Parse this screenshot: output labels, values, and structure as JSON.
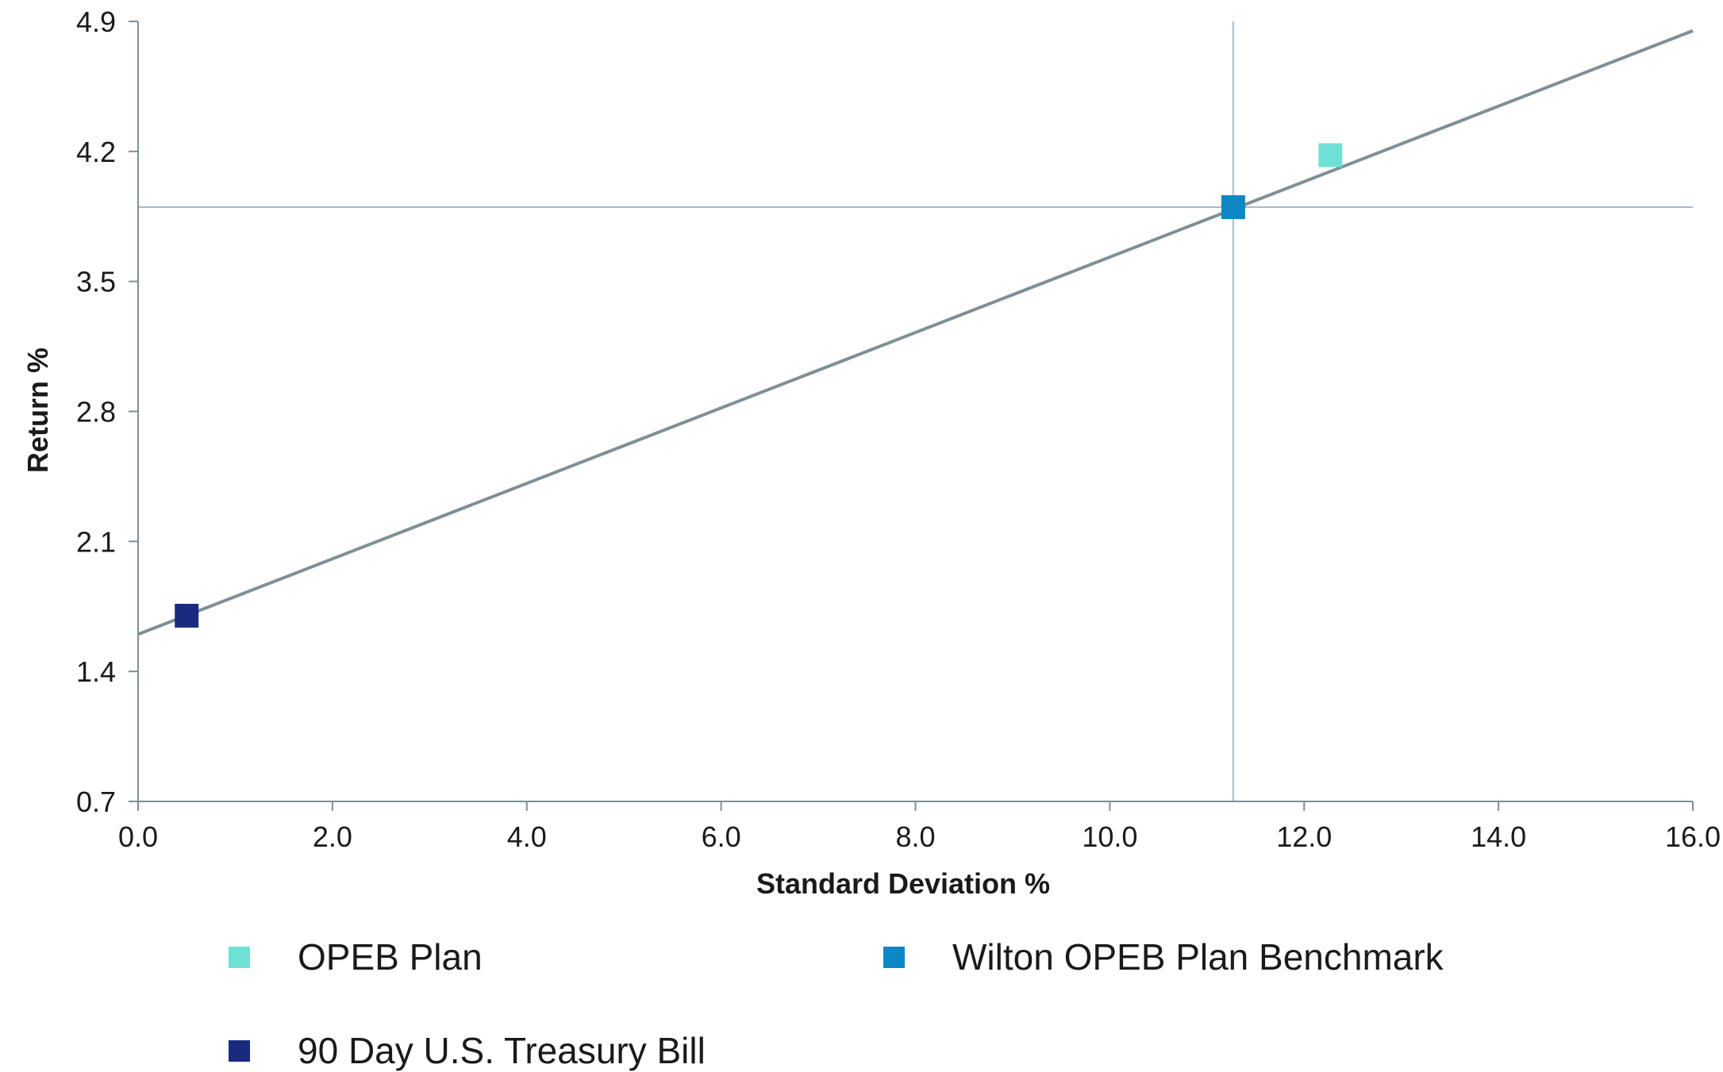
{
  "chart_data": {
    "type": "scatter",
    "xlabel": "Standard Deviation %",
    "ylabel": "Return %",
    "xlim": [
      0.0,
      16.0
    ],
    "ylim": [
      0.7,
      4.9
    ],
    "x_ticks": [
      "0.0",
      "2.0",
      "4.0",
      "6.0",
      "8.0",
      "10.0",
      "12.0",
      "14.0",
      "16.0"
    ],
    "y_ticks": [
      "0.7",
      "1.4",
      "2.1",
      "2.8",
      "3.5",
      "4.2",
      "4.9"
    ],
    "grid": false,
    "legend_position": "bottom",
    "reference_lines": {
      "vertical_x": 11.27,
      "horizontal_y": 3.9,
      "color": "#a9bac6"
    },
    "capital_market_line": {
      "x": [
        0.0,
        16.0
      ],
      "y": [
        1.6,
        4.85
      ],
      "color": "#7f8f96"
    },
    "series": [
      {
        "name": "OPEB Plan",
        "x": 12.27,
        "y": 4.18,
        "color": "#6fe0d4"
      },
      {
        "name": "Wilton OPEB Plan Benchmark",
        "x": 11.27,
        "y": 3.9,
        "color": "#0e87c4"
      },
      {
        "name": "90 Day U.S. Treasury Bill",
        "x": 0.5,
        "y": 1.7,
        "color": "#1a2a80"
      }
    ]
  }
}
